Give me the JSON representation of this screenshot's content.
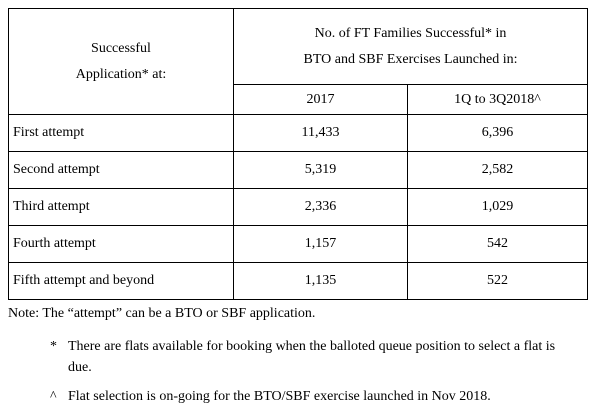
{
  "table": {
    "header": {
      "row_label": [
        "Successful",
        "Application* at:"
      ],
      "group": [
        "No. of FT Families Successful* in",
        "BTO and SBF Exercises Launched in:"
      ],
      "columns": [
        "2017",
        "1Q to 3Q2018^"
      ]
    },
    "rows": [
      [
        "First attempt",
        "11,433",
        "6,396"
      ],
      [
        "Second attempt",
        "5,319",
        "2,582"
      ],
      [
        "Third attempt",
        "2,336",
        "1,029"
      ],
      [
        "Fourth attempt",
        "1,157",
        "542"
      ],
      [
        "Fifth attempt and beyond",
        "1,135",
        "522"
      ]
    ]
  },
  "notes": {
    "intro": "Note:  The “attempt” can be a BTO or SBF application.",
    "items": [
      {
        "marker": "*",
        "text": "There are flats available for booking when the balloted queue position to select a flat is due."
      },
      {
        "marker": "^",
        "text": "Flat selection is on-going for the BTO/SBF exercise launched in Nov 2018."
      }
    ]
  }
}
